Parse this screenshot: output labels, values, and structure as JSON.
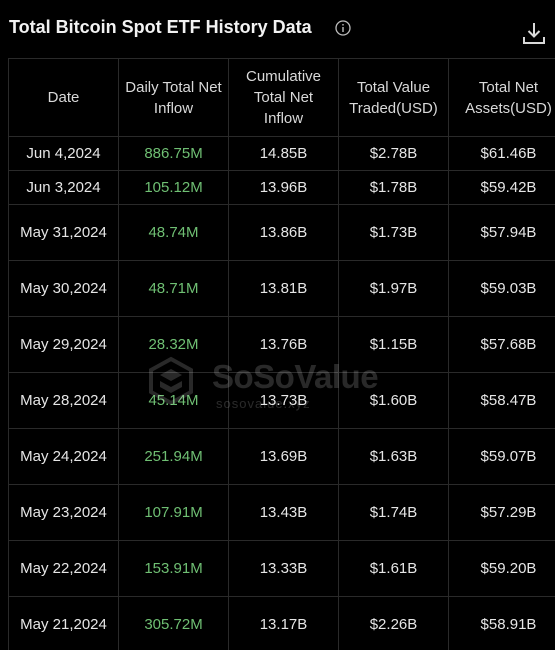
{
  "header": {
    "title": "Total Bitcoin Spot ETF History Data",
    "info_icon": "info-circle-icon",
    "download_icon": "download-icon"
  },
  "table": {
    "columns": [
      "Date",
      "Daily Total Net Inflow",
      "Cumulative Total Net Inflow",
      "Total Value Traded(USD)",
      "Total Net Assets(USD)"
    ],
    "rows": [
      {
        "date": "Jun 4,2024",
        "inflow": "886.75M",
        "cumulative": "14.85B",
        "traded": "$2.78B",
        "assets": "$61.46B"
      },
      {
        "date": "Jun 3,2024",
        "inflow": "105.12M",
        "cumulative": "13.96B",
        "traded": "$1.78B",
        "assets": "$59.42B"
      },
      {
        "date": "May 31,2024",
        "inflow": "48.74M",
        "cumulative": "13.86B",
        "traded": "$1.73B",
        "assets": "$57.94B"
      },
      {
        "date": "May 30,2024",
        "inflow": "48.71M",
        "cumulative": "13.81B",
        "traded": "$1.97B",
        "assets": "$59.03B"
      },
      {
        "date": "May 29,2024",
        "inflow": "28.32M",
        "cumulative": "13.76B",
        "traded": "$1.15B",
        "assets": "$57.68B"
      },
      {
        "date": "May 28,2024",
        "inflow": "45.14M",
        "cumulative": "13.73B",
        "traded": "$1.60B",
        "assets": "$58.47B"
      },
      {
        "date": "May 24,2024",
        "inflow": "251.94M",
        "cumulative": "13.69B",
        "traded": "$1.63B",
        "assets": "$59.07B"
      },
      {
        "date": "May 23,2024",
        "inflow": "107.91M",
        "cumulative": "13.43B",
        "traded": "$1.74B",
        "assets": "$57.29B"
      },
      {
        "date": "May 22,2024",
        "inflow": "153.91M",
        "cumulative": "13.33B",
        "traded": "$1.61B",
        "assets": "$59.20B"
      },
      {
        "date": "May 21,2024",
        "inflow": "305.72M",
        "cumulative": "13.17B",
        "traded": "$2.26B",
        "assets": "$58.91B"
      }
    ]
  },
  "watermark": {
    "brand": "SoSoValue",
    "sub": "sosovalue.xyz"
  },
  "colors": {
    "background": "#000000",
    "text": "#e6e6e6",
    "inflow_positive": "#6fbf73",
    "border": "#2a2a2a"
  }
}
